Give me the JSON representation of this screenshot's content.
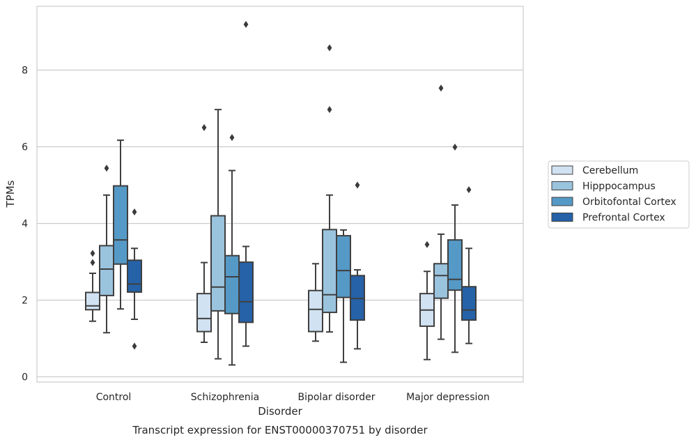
{
  "chart_data": {
    "type": "boxplot",
    "caption": "Transcript expression for ENST00000370751 by disorder",
    "xlabel": "Disorder",
    "ylabel": "TPMs",
    "ylim": [
      -0.15,
      9.8
    ],
    "yticks": [
      0,
      2,
      4,
      6,
      8
    ],
    "ytick_labels": [
      "0",
      "2",
      "4",
      "6",
      "8"
    ],
    "grid": "horizontal",
    "legend_position": "right",
    "categories": [
      "Control",
      "Schizophrenia",
      "Bipolar disorder",
      "Major depression"
    ],
    "series": [
      {
        "name": "Cerebellum",
        "color": "#d1e2f2",
        "boxes": [
          {
            "whislo": 1.45,
            "q1": 1.75,
            "med": 1.85,
            "q3": 2.2,
            "whishi": 2.7,
            "fliers": [
              2.98,
              3.22
            ]
          },
          {
            "whislo": 0.9,
            "q1": 1.18,
            "med": 1.52,
            "q3": 2.17,
            "whishi": 2.98,
            "fliers": [
              6.5
            ]
          },
          {
            "whislo": 0.93,
            "q1": 1.18,
            "med": 1.76,
            "q3": 2.25,
            "whishi": 2.95,
            "fliers": []
          },
          {
            "whislo": 0.45,
            "q1": 1.32,
            "med": 1.74,
            "q3": 2.17,
            "whishi": 2.75,
            "fliers": [
              3.45
            ]
          }
        ]
      },
      {
        "name": "Hipppocampus",
        "color": "#9ac3de",
        "boxes": [
          {
            "whislo": 1.15,
            "q1": 2.12,
            "med": 2.81,
            "q3": 3.42,
            "whishi": 4.74,
            "fliers": [
              5.44
            ]
          },
          {
            "whislo": 0.47,
            "q1": 1.72,
            "med": 2.34,
            "q3": 4.2,
            "whishi": 6.97,
            "fliers": []
          },
          {
            "whislo": 1.17,
            "q1": 1.68,
            "med": 2.14,
            "q3": 3.84,
            "whishi": 4.74,
            "fliers": [
              6.97,
              8.58
            ]
          },
          {
            "whislo": 0.98,
            "q1": 2.05,
            "med": 2.64,
            "q3": 2.95,
            "whishi": 3.72,
            "fliers": [
              7.53
            ]
          }
        ]
      },
      {
        "name": "Orbitofontal Cortex",
        "color": "#5599c6",
        "boxes": [
          {
            "whislo": 1.77,
            "q1": 2.94,
            "med": 3.57,
            "q3": 4.98,
            "whishi": 6.17,
            "fliers": []
          },
          {
            "whislo": 0.31,
            "q1": 1.65,
            "med": 2.61,
            "q3": 3.16,
            "whishi": 5.38,
            "fliers": [
              6.24
            ]
          },
          {
            "whislo": 0.38,
            "q1": 2.07,
            "med": 2.77,
            "q3": 3.68,
            "whishi": 3.83,
            "fliers": []
          },
          {
            "whislo": 0.64,
            "q1": 2.26,
            "med": 2.54,
            "q3": 3.57,
            "whishi": 4.48,
            "fliers": [
              5.99
            ]
          }
        ]
      },
      {
        "name": "Prefrontal Cortex",
        "color": "#2562a8",
        "boxes": [
          {
            "whislo": 1.5,
            "q1": 2.21,
            "med": 2.42,
            "q3": 3.04,
            "whishi": 3.35,
            "fliers": [
              0.8,
              4.3
            ]
          },
          {
            "whislo": 0.8,
            "q1": 1.42,
            "med": 1.96,
            "q3": 2.99,
            "whishi": 3.4,
            "fliers": [
              9.19
            ]
          },
          {
            "whislo": 0.73,
            "q1": 1.48,
            "med": 2.04,
            "q3": 2.64,
            "whishi": 2.79,
            "fliers": [
              5.0
            ]
          },
          {
            "whislo": 0.87,
            "q1": 1.48,
            "med": 1.74,
            "q3": 2.35,
            "whishi": 3.35,
            "fliers": [
              4.88
            ]
          }
        ]
      }
    ]
  }
}
